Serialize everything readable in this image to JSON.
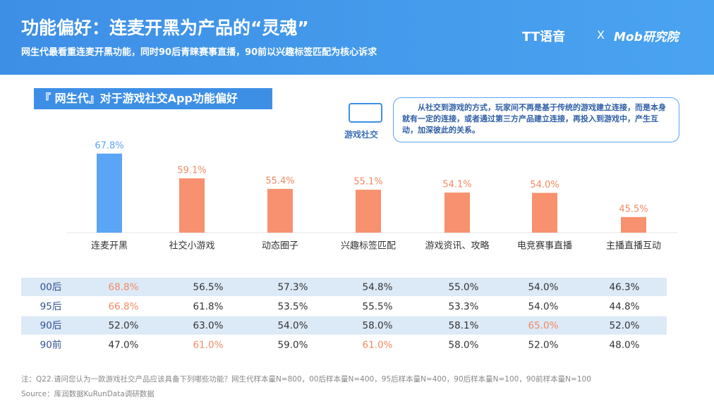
{
  "header": {
    "title": "功能偏好：连麦开黑为产品的“灵魂”",
    "subtitle": "网生代最看重连麦开黑功能，同时90后青睐赛事直播，90前以兴趣标签匹配为核心诉求",
    "brand_left": "TT语音",
    "brand_sep": "X",
    "brand_right": "Mob研究院"
  },
  "chart_data": {
    "type": "bar",
    "title": "『 网生代』对于游戏社交App功能偏好",
    "categories": [
      "连麦开黑",
      "社交小游戏",
      "动态圈子",
      "兴趣标签匹配",
      "游戏资讯、攻略",
      "电竞赛事直播",
      "主播直播互动"
    ],
    "values": [
      67.8,
      59.1,
      55.4,
      55.1,
      54.1,
      54.0,
      45.5
    ],
    "value_labels": [
      "67.8%",
      "59.1%",
      "55.4%",
      "55.1%",
      "54.1%",
      "54.0%",
      "45.5%"
    ],
    "colors": [
      "#5aa5f5",
      "#f7916f",
      "#f7916f",
      "#f7916f",
      "#f7916f",
      "#f7916f",
      "#f7916f"
    ],
    "label_colors": [
      "#5aa5f5",
      "#f08a62",
      "#f08a62",
      "#f08a62",
      "#f08a62",
      "#f08a62",
      "#f08a62"
    ],
    "ylim": [
      40,
      70
    ]
  },
  "callout": {
    "label": "游戏社交",
    "text": "从社交到游戏的方式，玩家间不再是基于传统的游戏建立连接，而是本身就有一定的连接，或者通过第三方产品建立连接，再投入到游戏中，产生互动，加深彼此的关系。"
  },
  "table": {
    "rows": [
      [
        "00后",
        {
          "text": "68.8%",
          "color": "#f08a62"
        },
        "56.5%",
        "57.3%",
        "54.8%",
        "55.0%",
        "54.0%",
        "46.3%"
      ],
      [
        "95后",
        {
          "text": "66.8%",
          "color": "#f08a62"
        },
        "61.8%",
        "53.5%",
        "55.5%",
        "53.3%",
        "54.0%",
        "44.8%"
      ],
      [
        "90后",
        "52.0%",
        "63.0%",
        "54.0%",
        "58.0%",
        "58.1%",
        {
          "text": "65.0%",
          "color": "#f08a62"
        },
        "52.0%"
      ],
      [
        "90前",
        "47.0%",
        {
          "text": "61.0%",
          "color": "#f08a62"
        },
        "59.0%",
        {
          "text": "61.0%",
          "color": "#f08a62"
        },
        "58.0%",
        "52.0%",
        "48.0%"
      ]
    ]
  },
  "footer": {
    "note": "注：Q22.请问您认为一款游戏社交产品应该具备下列哪些功能？网生代样本量N=800，00后样本量N=400，95后样本量N=400，90后样本量N=100，90前样本量N=100",
    "source": "Source：库润数据KuRunData调研数据"
  }
}
